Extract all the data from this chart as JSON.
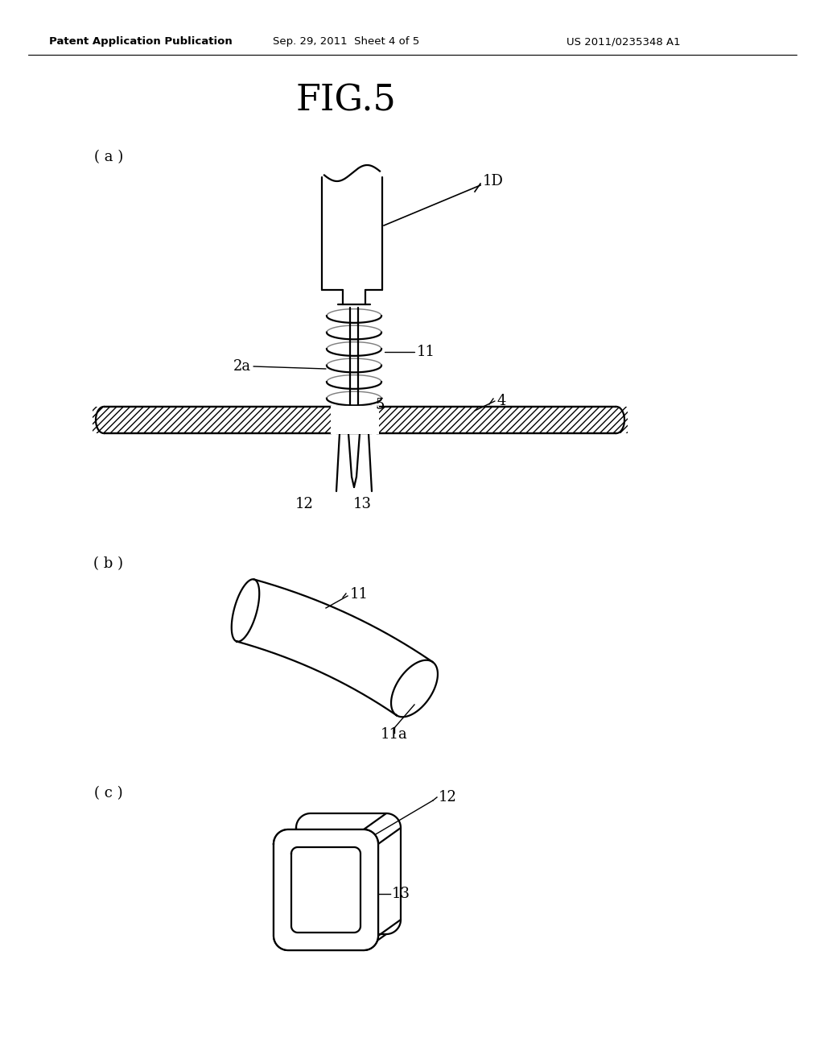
{
  "bg_color": "#ffffff",
  "line_color": "#000000",
  "header_left": "Patent Application Publication",
  "header_center": "Sep. 29, 2011  Sheet 4 of 5",
  "header_right": "US 2011/0235348 A1",
  "fig_title": "FIG.5",
  "label_a": "( a )",
  "label_b": "( b )",
  "label_c": "( c )",
  "ref_1D": "1D",
  "ref_11": "11",
  "ref_11a": "11a",
  "ref_12": "12",
  "ref_13": "13",
  "ref_2a": "2a",
  "ref_4": "4",
  "ref_5": "5"
}
